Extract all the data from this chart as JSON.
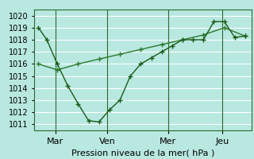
{
  "bg_color": "#b8e8e0",
  "grid_color": "#ffffff",
  "line1_color": "#1a5c1a",
  "line2_color": "#2d7a2d",
  "xlabel": "Pression niveau de la mer( hPa )",
  "ylim": [
    1010.5,
    1020.5
  ],
  "yticks": [
    1011,
    1012,
    1013,
    1014,
    1015,
    1016,
    1017,
    1018,
    1019,
    1020
  ],
  "xtick_labels": [
    "Mar",
    "Ven",
    "Mer",
    "Jeu"
  ],
  "line1_x": [
    0.0,
    0.04,
    0.09,
    0.14,
    0.19,
    0.24,
    0.29,
    0.34,
    0.39,
    0.44,
    0.49,
    0.54,
    0.59,
    0.64,
    0.69,
    0.74,
    0.79,
    0.84,
    0.89,
    0.94,
    0.99
  ],
  "line1_y": [
    1019,
    1018,
    1016,
    1014.2,
    1012.7,
    1011.3,
    1011.2,
    1012.2,
    1013.0,
    1015.0,
    1016.0,
    1016.5,
    1017.0,
    1017.5,
    1018.0,
    1018.0,
    1018.0,
    1019.5,
    1019.5,
    1018.2,
    1018.3
  ],
  "line2_x": [
    0.0,
    0.09,
    0.19,
    0.29,
    0.39,
    0.49,
    0.59,
    0.69,
    0.79,
    0.89,
    0.99
  ],
  "line2_y": [
    1016.0,
    1015.5,
    1016.0,
    1016.4,
    1016.8,
    1017.2,
    1017.6,
    1018.0,
    1018.4,
    1019.0,
    1018.3
  ],
  "vlines_x": [
    0.08,
    0.33,
    0.62,
    0.88
  ],
  "figsize": [
    3.2,
    2.0
  ],
  "dpi": 100
}
